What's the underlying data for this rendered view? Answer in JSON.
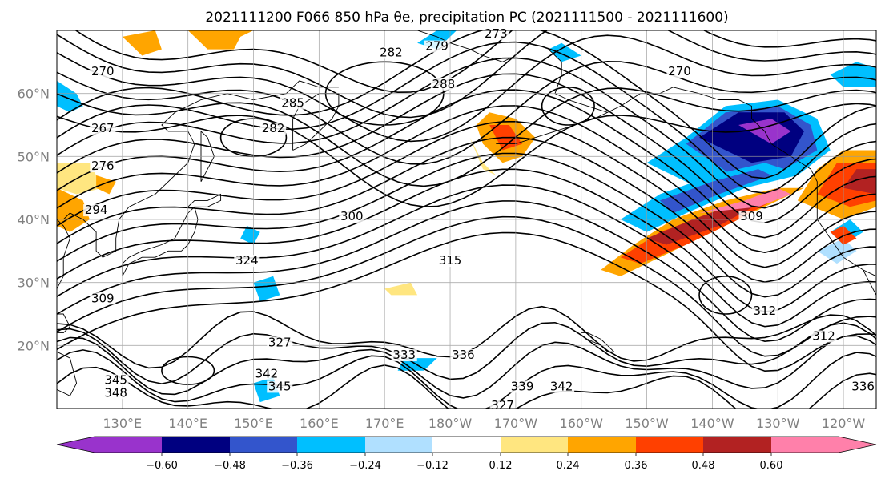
{
  "title": "2021111200 F066 850 hPa θe, precipitation PC (2021111500 - 2021111600)",
  "lat_labels": [
    "60°N",
    "50°N",
    "40°N",
    "30°N",
    "20°N"
  ],
  "lon_labels": [
    "130°E",
    "140°E",
    "150°E",
    "160°E",
    "170°E",
    "180°W",
    "170°W",
    "160°W",
    "150°W",
    "140°W",
    "130°W",
    "120°W"
  ],
  "colorbar": {
    "colors": [
      "#9933cc",
      "#000080",
      "#3355cc",
      "#00bfff",
      "#b0e0ff",
      "#ffffff",
      "#ffe680",
      "#ffa500",
      "#ff4000",
      "#b22222",
      "#ff80aa"
    ],
    "tick_labels": [
      "−0.60",
      "−0.48",
      "−0.36",
      "−0.24",
      "−0.12",
      "0.12",
      "0.24",
      "0.36",
      "0.48",
      "0.60"
    ]
  },
  "contour_labels": [
    {
      "text": "270",
      "lon": 127,
      "lat": 63
    },
    {
      "text": "267",
      "lon": 127,
      "lat": 54
    },
    {
      "text": "276",
      "lon": 127,
      "lat": 48
    },
    {
      "text": "294",
      "lon": 126,
      "lat": 41
    },
    {
      "text": "309",
      "lon": 127,
      "lat": 27
    },
    {
      "text": "345",
      "lon": 129,
      "lat": 14
    },
    {
      "text": "348",
      "lon": 129,
      "lat": 12
    },
    {
      "text": "285",
      "lon": 156,
      "lat": 58
    },
    {
      "text": "282",
      "lon": 153,
      "lat": 54
    },
    {
      "text": "282",
      "lon": 171,
      "lat": 66
    },
    {
      "text": "279",
      "lon": 178,
      "lat": 67
    },
    {
      "text": "273",
      "lon": 187,
      "lat": 69
    },
    {
      "text": "288",
      "lon": 179,
      "lat": 61
    },
    {
      "text": "270",
      "lon": 215,
      "lat": 63
    },
    {
      "text": "300",
      "lon": 165,
      "lat": 40
    },
    {
      "text": "324",
      "lon": 149,
      "lat": 33
    },
    {
      "text": "315",
      "lon": 180,
      "lat": 33
    },
    {
      "text": "327",
      "lon": 154,
      "lat": 20
    },
    {
      "text": "342",
      "lon": 152,
      "lat": 15
    },
    {
      "text": "345",
      "lon": 154,
      "lat": 13
    },
    {
      "text": "333",
      "lon": 173,
      "lat": 18
    },
    {
      "text": "336",
      "lon": 182,
      "lat": 18
    },
    {
      "text": "339",
      "lon": 191,
      "lat": 13
    },
    {
      "text": "342",
      "lon": 197,
      "lat": 13
    },
    {
      "text": "327",
      "lon": 188,
      "lat": 10
    },
    {
      "text": "312",
      "lon": 228,
      "lat": 25
    },
    {
      "text": "312",
      "lon": 237,
      "lat": 21
    },
    {
      "text": "309",
      "lon": 226,
      "lat": 40
    },
    {
      "text": "336",
      "lon": 243,
      "lat": 13
    }
  ]
}
